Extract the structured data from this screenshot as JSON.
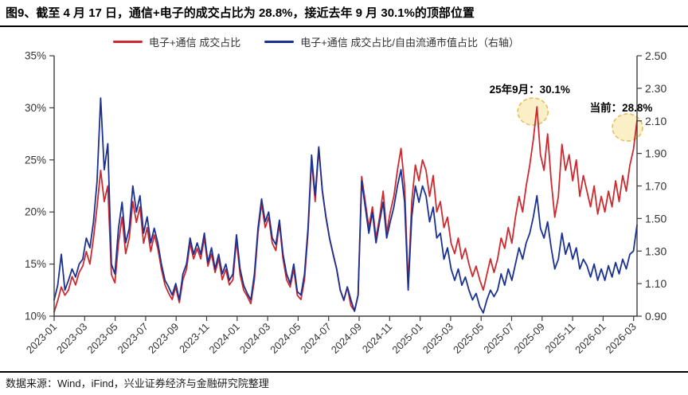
{
  "title": "图9、截至 4 月 17 日，通信+电子的成交占比为 28.8%，接近去年 9 月 30.1%的顶部位置",
  "source": "数据来源：Wind，iFind，兴业证券经济与金融研究院整理",
  "colors": {
    "red": "#CC2A2F",
    "blue": "#1B3191",
    "highlight_fill": "#FBEFC8",
    "highlight_border": "#E8BE5A",
    "axis": "#3d3d3d",
    "tick_text": "#333333"
  },
  "legend": [
    {
      "label": "电子+通信 成交占比",
      "color": "#CC2A2F"
    },
    {
      "label": "电子+通信 成交占比/自由流通市值占比（右轴）",
      "color": "#1B3191"
    }
  ],
  "annotations": [
    {
      "label": "25年9月：30.1%",
      "index": 135,
      "value": 30.1
    },
    {
      "label": "当前：28.8%",
      "index": 163,
      "value": 28.8
    }
  ],
  "chart_data": {
    "type": "line",
    "title": "通信+电子成交占比与成交占比/自由流通市值占比",
    "x_tick_labels": [
      "2023-01",
      "2023-03",
      "2023-05",
      "2023-07",
      "2023-09",
      "2023-11",
      "2024-01",
      "2024-03",
      "2024-05",
      "2024-07",
      "2024-09",
      "2024-11",
      "2025-01",
      "2025-03",
      "2025-05",
      "2025-07",
      "2025-09",
      "2025-11",
      "2026-01",
      "2026-03"
    ],
    "left_axis": {
      "min": 10,
      "max": 35,
      "unit": "%",
      "tick_labels": [
        "35%",
        "30%",
        "25%",
        "20%",
        "15%",
        "10%"
      ]
    },
    "right_axis": {
      "min": 0.9,
      "max": 2.5,
      "tick_labels": [
        "2.50",
        "2.30",
        "2.10",
        "1.90",
        "1.70",
        "1.50",
        "1.30",
        "1.10",
        "0.90"
      ]
    },
    "legend_position": "top",
    "grid": false,
    "series": [
      {
        "name": "电子+通信 成交占比",
        "axis": "left",
        "color": "#CC2A2F",
        "values": [
          10.4,
          11.5,
          12.8,
          12.0,
          12.5,
          13.8,
          13.0,
          14.2,
          14.8,
          16.2,
          15.0,
          17.5,
          20.5,
          24.0,
          21.0,
          22.5,
          14.0,
          13.2,
          17.0,
          19.5,
          16.0,
          17.5,
          21.0,
          19.0,
          20.5,
          17.0,
          18.5,
          16.2,
          17.8,
          16.5,
          14.5,
          13.0,
          12.2,
          11.6,
          12.8,
          11.3,
          13.5,
          14.5,
          17.0,
          15.5,
          16.5,
          15.5,
          17.5,
          14.8,
          16.0,
          14.2,
          15.5,
          13.5,
          14.5,
          13.0,
          13.5,
          17.3,
          14.0,
          12.5,
          11.9,
          11.2,
          13.5,
          18.0,
          20.8,
          18.5,
          19.5,
          17.0,
          16.3,
          18.9,
          15.5,
          13.5,
          12.8,
          14.5,
          12.0,
          11.6,
          13.5,
          18.0,
          25.0,
          21.0,
          26.1,
          22.0,
          19.5,
          17.5,
          16.0,
          14.5,
          12.5,
          11.5,
          12.8,
          11.0,
          10.5,
          12.0,
          23.4,
          21.0,
          18.5,
          20.5,
          17.5,
          19.5,
          22.0,
          18.0,
          20.0,
          21.5,
          24.0,
          26.1,
          22.5,
          13.0,
          21.0,
          24.5,
          23.0,
          25.0,
          24.0,
          21.5,
          23.5,
          20.0,
          21.0,
          18.5,
          19.5,
          17.0,
          16.0,
          17.5,
          15.5,
          16.5,
          15.0,
          13.8,
          14.8,
          13.5,
          12.5,
          14.0,
          15.5,
          14.2,
          15.5,
          17.5,
          16.5,
          18.5,
          17.0,
          19.5,
          21.5,
          20.0,
          22.5,
          24.5,
          27.0,
          30.1,
          25.5,
          24.0,
          27.5,
          23.0,
          19.5,
          21.5,
          26.5,
          24.0,
          25.5,
          23.0,
          25.0,
          21.5,
          23.5,
          22.0,
          20.5,
          22.5,
          19.8,
          21.5,
          20.0,
          22.0,
          20.5,
          23.0,
          21.0,
          23.5,
          22.0,
          24.5,
          26.0,
          28.8
        ]
      },
      {
        "name": "电子+通信 成交占比/自由流通市值占比（右轴）",
        "axis": "right",
        "color": "#1B3191",
        "values": [
          1.0,
          1.09,
          1.28,
          1.06,
          1.12,
          1.19,
          1.14,
          1.22,
          1.25,
          1.38,
          1.32,
          1.48,
          1.73,
          2.24,
          1.8,
          1.96,
          1.22,
          1.16,
          1.44,
          1.6,
          1.35,
          1.44,
          1.7,
          1.54,
          1.64,
          1.41,
          1.51,
          1.35,
          1.44,
          1.35,
          1.22,
          1.12,
          1.08,
          1.03,
          1.1,
          1.0,
          1.16,
          1.22,
          1.38,
          1.28,
          1.35,
          1.28,
          1.41,
          1.23,
          1.32,
          1.19,
          1.28,
          1.16,
          1.22,
          1.12,
          1.16,
          1.4,
          1.19,
          1.09,
          1.04,
          1.0,
          1.16,
          1.44,
          1.62,
          1.48,
          1.54,
          1.38,
          1.34,
          1.49,
          1.28,
          1.16,
          1.1,
          1.22,
          1.05,
          1.03,
          1.16,
          1.44,
          1.89,
          1.64,
          1.94,
          1.67,
          1.51,
          1.38,
          1.28,
          1.19,
          1.06,
          1.0,
          1.08,
          1.0,
          0.93,
          1.03,
          1.73,
          1.57,
          1.41,
          1.54,
          1.35,
          1.48,
          1.6,
          1.38,
          1.48,
          1.57,
          1.7,
          1.8,
          1.6,
          1.06,
          1.51,
          1.7,
          1.6,
          1.7,
          1.64,
          1.48,
          1.57,
          1.38,
          1.41,
          1.25,
          1.32,
          1.19,
          1.12,
          1.19,
          1.09,
          1.14,
          1.06,
          1.0,
          1.04,
          0.96,
          0.92,
          1.0,
          1.06,
          1.02,
          1.06,
          1.16,
          1.09,
          1.19,
          1.12,
          1.22,
          1.32,
          1.25,
          1.35,
          1.41,
          1.51,
          1.64,
          1.44,
          1.38,
          1.48,
          1.32,
          1.19,
          1.25,
          1.41,
          1.28,
          1.35,
          1.25,
          1.32,
          1.19,
          1.25,
          1.21,
          1.14,
          1.22,
          1.12,
          1.19,
          1.12,
          1.21,
          1.14,
          1.23,
          1.16,
          1.25,
          1.19,
          1.28,
          1.3,
          1.46
        ]
      }
    ]
  }
}
